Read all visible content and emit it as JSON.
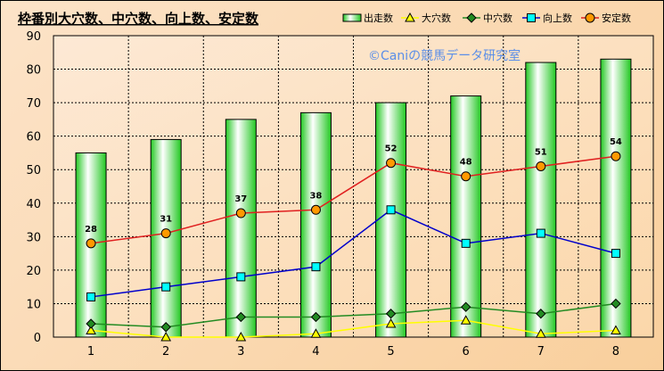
{
  "chart_data": {
    "type": "bar",
    "title": "枠番別大穴数、中穴数、向上数、安定数",
    "watermark": "©Caniの競馬データ研究室",
    "categories": [
      "1",
      "2",
      "3",
      "4",
      "5",
      "6",
      "7",
      "8"
    ],
    "ylim": [
      0,
      90
    ],
    "yticks": [
      0,
      10,
      20,
      30,
      40,
      50,
      60,
      70,
      80,
      90
    ],
    "grid": true,
    "legend_position": "top-right",
    "series": [
      {
        "name": "出走数",
        "type": "bar",
        "color": "#22c822",
        "values": [
          55,
          59,
          65,
          67,
          70,
          72,
          82,
          83
        ]
      },
      {
        "name": "大穴数",
        "type": "line",
        "marker": "triangle",
        "color": "#ffff00",
        "values": [
          2,
          0,
          0,
          1,
          4,
          5,
          1,
          2
        ]
      },
      {
        "name": "中穴数",
        "type": "line",
        "marker": "diamond",
        "color": "#228b22",
        "values": [
          4,
          3,
          6,
          6,
          7,
          9,
          7,
          10
        ]
      },
      {
        "name": "向上数",
        "type": "line",
        "marker": "square",
        "color": "#0000cc",
        "values": [
          12,
          15,
          18,
          21,
          38,
          28,
          31,
          25
        ]
      },
      {
        "name": "安定数",
        "type": "line",
        "marker": "circle",
        "color": "#e02020",
        "values": [
          28,
          31,
          37,
          38,
          52,
          48,
          51,
          54
        ],
        "data_labels": true
      }
    ]
  }
}
